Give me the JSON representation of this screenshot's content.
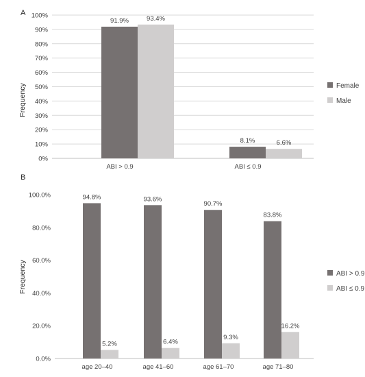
{
  "chart_data": [
    {
      "panel_label": "A",
      "type": "bar",
      "ylabel": "Frequency",
      "ylim": [
        0,
        100
      ],
      "y_ticks": [
        "0%",
        "10%",
        "20%",
        "30%",
        "40%",
        "50%",
        "60%",
        "70%",
        "80%",
        "90%",
        "100%"
      ],
      "categories": [
        "ABI > 0.9",
        "ABI ≤ 0.9"
      ],
      "series": [
        {
          "name": "Female",
          "color": "#767171",
          "values": [
            91.9,
            8.1
          ],
          "labels": [
            "91.9%",
            "8.1%"
          ]
        },
        {
          "name": "Male",
          "color": "#d0cece",
          "values": [
            93.4,
            6.6
          ],
          "labels": [
            "93.4%",
            "6.6%"
          ]
        }
      ],
      "grid": true,
      "legend": "right"
    },
    {
      "panel_label": "B",
      "type": "bar",
      "ylabel": "Frequency",
      "ylim": [
        0,
        100
      ],
      "y_ticks": [
        "0.0%",
        "20.0%",
        "40.0%",
        "60.0%",
        "80.0%",
        "100.0%"
      ],
      "categories": [
        "age 20–40",
        "age 41–60",
        "age 61–70",
        "age 71–80"
      ],
      "series": [
        {
          "name": "ABI > 0.9",
          "color": "#767171",
          "values": [
            94.8,
            93.6,
            90.7,
            83.8
          ],
          "labels": [
            "94.8%",
            "93.6%",
            "90.7%",
            "83.8%"
          ]
        },
        {
          "name": "ABI ≤ 0.9",
          "color": "#d0cece",
          "values": [
            5.2,
            6.4,
            9.3,
            16.2
          ],
          "labels": [
            "5.2%",
            "6.4%",
            "9.3%",
            "16.2%"
          ]
        }
      ],
      "grid": false,
      "legend": "right"
    }
  ]
}
